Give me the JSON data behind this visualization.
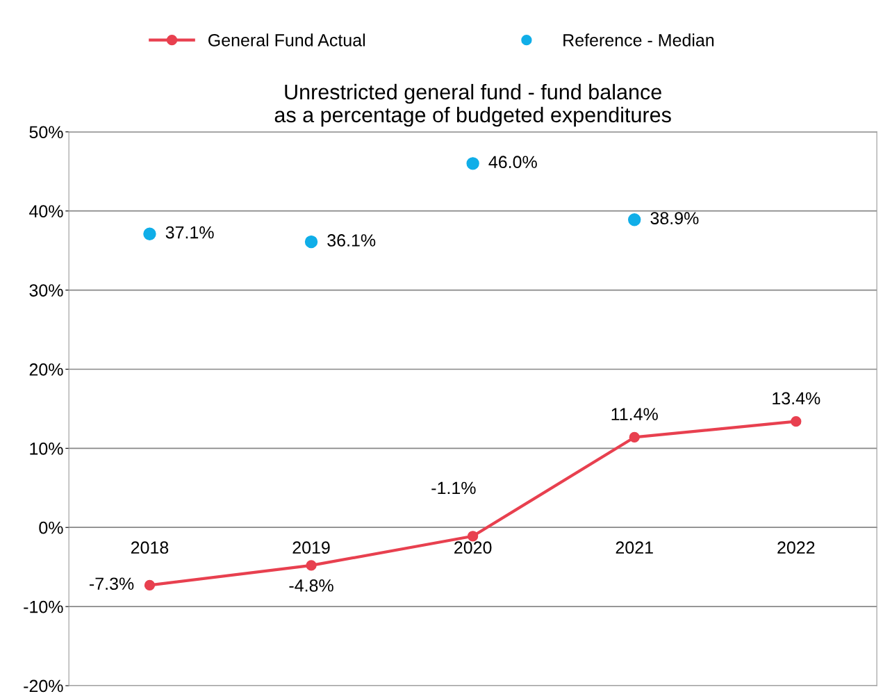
{
  "chart_data": {
    "type": "line",
    "title": "Unrestricted general fund - fund balance\nas a percentage of budgeted expenditures",
    "categories": [
      "2018",
      "2019",
      "2020",
      "2021",
      "2022"
    ],
    "series": [
      {
        "name": "General Fund Actual",
        "color": "#e8404f",
        "marker": "circle",
        "values": [
          -7.3,
          -4.8,
          -1.1,
          11.4,
          13.4
        ],
        "value_labels": [
          "-7.3%",
          "-4.8%",
          "-1.1%",
          "11.4%",
          "13.4%"
        ]
      },
      {
        "name": "Reference - Median",
        "type": "scatter",
        "color": "#10aee8",
        "marker": "circle",
        "values": [
          37.1,
          36.1,
          46.0,
          38.9,
          null
        ],
        "value_labels": [
          "37.1%",
          "36.1%",
          "46.0%",
          "38.9%",
          null
        ]
      }
    ],
    "ylim": [
      -20,
      50
    ],
    "yticks": [
      {
        "value": -20,
        "label": "-20%"
      },
      {
        "value": -10,
        "label": "-10%"
      },
      {
        "value": 0,
        "label": "0%"
      },
      {
        "value": 10,
        "label": "10%"
      },
      {
        "value": 20,
        "label": "20%"
      },
      {
        "value": 30,
        "label": "30%"
      },
      {
        "value": 40,
        "label": "40%"
      },
      {
        "value": 50,
        "label": "50%"
      }
    ],
    "grid": "y",
    "legend": "top"
  }
}
